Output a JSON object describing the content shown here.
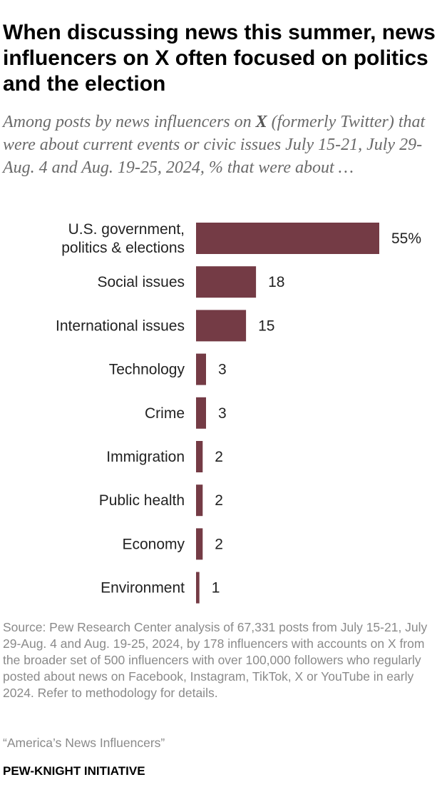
{
  "header": {
    "title": "When discussing news this summer, news influencers on X often focused on politics and the election",
    "subtitle_before": "Among posts by news influencers on ",
    "subtitle_bold": "X",
    "subtitle_after": " (formerly Twitter) that were about current events or civic issues July 15-21, July 29-Aug. 4 and Aug. 19-25, 2024, % that were about …"
  },
  "chart_data": {
    "type": "bar",
    "orientation": "horizontal",
    "title": "When discussing news this summer, news influencers on X often focused on politics and the election",
    "categories": [
      [
        "U.S. government,",
        "politics & elections"
      ],
      [
        "Social issues"
      ],
      [
        "International issues"
      ],
      [
        "Technology"
      ],
      [
        "Crime"
      ],
      [
        "Immigration"
      ],
      [
        "Public health"
      ],
      [
        "Economy"
      ],
      [
        "Environment"
      ]
    ],
    "values": [
      55,
      18,
      15,
      3,
      3,
      2,
      2,
      2,
      1
    ],
    "value_labels": [
      "55%",
      "18",
      "15",
      "3",
      "3",
      "2",
      "2",
      "2",
      "1"
    ],
    "unit": "%",
    "xlim": [
      0,
      55
    ],
    "grid": false,
    "legend": "none",
    "bar_color": "#743b45"
  },
  "footer": {
    "source": "Source: Pew Research Center analysis of 67,331 posts from July 15-21, July 29-Aug. 4 and Aug. 19-25, 2024, by 178 influencers with accounts on X from the broader set of 500 influencers with over 100,000 followers who regularly posted about news on Facebook, Instagram, TikTok, X or YouTube in early 2024. Refer to methodology for details.",
    "report": "“America’s News Influencers”",
    "brand": "PEW-KNIGHT INITIATIVE"
  }
}
